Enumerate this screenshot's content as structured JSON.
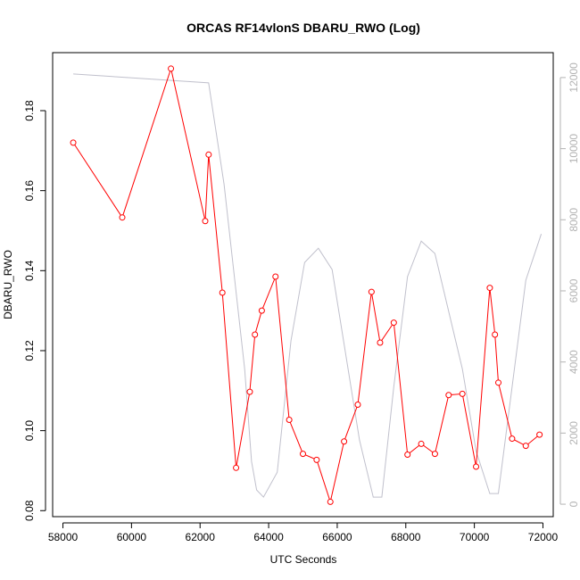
{
  "chart_data": {
    "type": "line",
    "title": "ORCAS RF14vlonS DBARU_RWO (Log)",
    "xlabel": "UTC Seconds",
    "ylabel": "DBARU_RWO",
    "xlim": [
      57700,
      72300
    ],
    "ylim": [
      0.0785,
      0.1945
    ],
    "y2lim": [
      -350,
      12700
    ],
    "x_ticks": [
      58000,
      60000,
      62000,
      64000,
      66000,
      68000,
      70000,
      72000
    ],
    "y_ticks": [
      0.08,
      0.1,
      0.12,
      0.14,
      0.16,
      0.18
    ],
    "y2_ticks": [
      0,
      2000,
      4000,
      6000,
      8000,
      10000,
      12000
    ],
    "x_tick_labels": [
      "58000",
      "60000",
      "62000",
      "64000",
      "66000",
      "68000",
      "70000",
      "72000"
    ],
    "y_tick_labels": [
      "0.08",
      "0.10",
      "0.12",
      "0.14",
      "0.16",
      "0.18"
    ],
    "y2_tick_labels": [
      "0",
      "2000",
      "4000",
      "6000",
      "8000",
      "10000",
      "12000"
    ],
    "grid": false,
    "series": [
      {
        "color": "#ff0000",
        "axis": "left",
        "marker": "open-circle",
        "x": [
          58300,
          59730,
          61150,
          62150,
          62250,
          62650,
          63050,
          63450,
          63600,
          63800,
          64200,
          64600,
          65000,
          65400,
          65800,
          66200,
          66600,
          67000,
          67250,
          67650,
          68050,
          68450,
          68850,
          69250,
          69650,
          70050,
          70450,
          70600,
          70700,
          71100,
          71500,
          71900
        ],
        "y": [
          0.172,
          0.1533,
          0.1905,
          0.1524,
          0.169,
          0.1345,
          0.0907,
          0.1097,
          0.124,
          0.13,
          0.1385,
          0.1027,
          0.0942,
          0.0927,
          0.0822,
          0.0973,
          0.1065,
          0.1347,
          0.122,
          0.127,
          0.094,
          0.0967,
          0.0942,
          0.1089,
          0.1092,
          0.091,
          0.1357,
          0.124,
          0.112,
          0.098,
          0.0962,
          0.099
        ]
      },
      {
        "color": "#c0c0cc",
        "axis": "right",
        "marker": "none",
        "x": [
          58300,
          62250,
          62700,
          63300,
          63500,
          63650,
          63850,
          64250,
          64650,
          65050,
          65450,
          65850,
          66650,
          67050,
          67300,
          67650,
          68050,
          68450,
          68850,
          69650,
          70050,
          70450,
          70700,
          71500,
          71950
        ],
        "y": [
          12100,
          11850,
          9000,
          3800,
          1200,
          400,
          200,
          900,
          4600,
          6800,
          7200,
          6600,
          1800,
          200,
          200,
          3300,
          6400,
          7400,
          7050,
          3800,
          1500,
          300,
          300,
          6300,
          7600
        ]
      }
    ]
  }
}
